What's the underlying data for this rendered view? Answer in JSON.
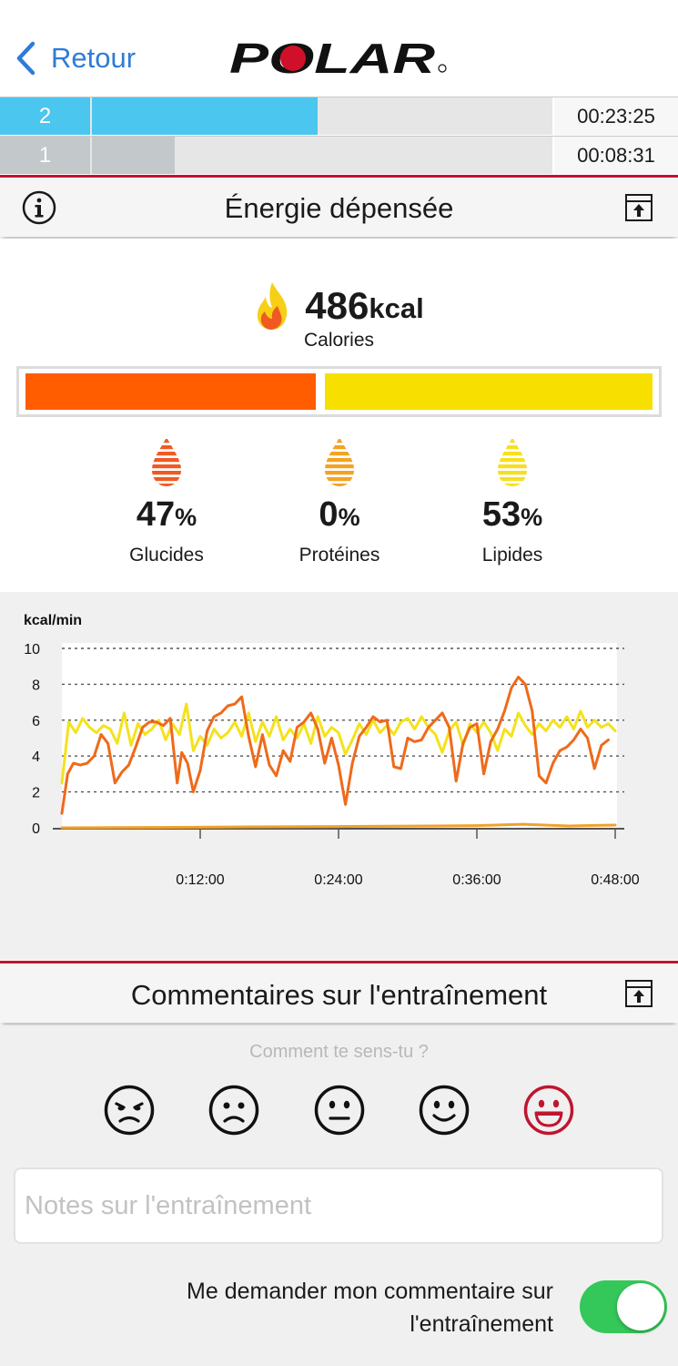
{
  "nav": {
    "back_label": "Retour",
    "logo_text": "POLAR"
  },
  "zones": [
    {
      "number": "2",
      "time": "00:23:25",
      "fraction": 0.49,
      "color": "#4ac6ef"
    },
    {
      "number": "1",
      "time": "00:08:31",
      "fraction": 0.18,
      "color": "#c3c8cb"
    }
  ],
  "energy": {
    "title": "Énergie dépensée",
    "calories_value": "486",
    "calories_unit": "kcal",
    "calories_label": "Calories",
    "ratio": {
      "carbs": 0.47,
      "fat": 0.53
    },
    "macros": [
      {
        "value": "47",
        "unit": "%",
        "label": "Glucides",
        "color": "#f05a22"
      },
      {
        "value": "0",
        "unit": "%",
        "label": "Protéines",
        "color": "#f3a323"
      },
      {
        "value": "53",
        "unit": "%",
        "label": "Lipides",
        "color": "#f8df1e"
      }
    ]
  },
  "chart_data": {
    "type": "line",
    "ylabel": "kcal/min",
    "ylim": [
      0,
      10
    ],
    "yticks": [
      "0",
      "2",
      "4",
      "6",
      "8",
      "10"
    ],
    "xlim": [
      0,
      48
    ],
    "xticks": [
      {
        "minute": 12,
        "label": "0:12:00"
      },
      {
        "minute": 24,
        "label": "0:24:00"
      },
      {
        "minute": 36,
        "label": "0:36:00"
      },
      {
        "minute": 48,
        "label": "0:48:00"
      }
    ],
    "grid": true,
    "series": [
      {
        "color": "#f4e21c",
        "points": [
          [
            0.0,
            2.5
          ],
          [
            0.6,
            5.9
          ],
          [
            1.2,
            5.3
          ],
          [
            1.8,
            6.1
          ],
          [
            2.4,
            5.6
          ],
          [
            3.0,
            5.3
          ],
          [
            3.6,
            5.7
          ],
          [
            4.2,
            5.5
          ],
          [
            4.8,
            4.7
          ],
          [
            5.4,
            6.4
          ],
          [
            6.0,
            4.6
          ],
          [
            6.6,
            5.8
          ],
          [
            7.2,
            5.2
          ],
          [
            7.8,
            5.5
          ],
          [
            8.4,
            6.0
          ],
          [
            9.0,
            4.9
          ],
          [
            9.6,
            5.8
          ],
          [
            10.2,
            5.2
          ],
          [
            10.8,
            6.9
          ],
          [
            11.4,
            4.3
          ],
          [
            12.0,
            5.1
          ],
          [
            12.6,
            4.6
          ],
          [
            13.2,
            5.5
          ],
          [
            13.8,
            5.0
          ],
          [
            14.4,
            5.3
          ],
          [
            15.0,
            5.9
          ],
          [
            15.6,
            5.1
          ],
          [
            16.2,
            6.4
          ],
          [
            16.8,
            4.8
          ],
          [
            17.4,
            5.9
          ],
          [
            18.0,
            5.1
          ],
          [
            18.6,
            6.2
          ],
          [
            19.2,
            4.9
          ],
          [
            19.8,
            5.5
          ],
          [
            20.4,
            5.0
          ],
          [
            21.0,
            5.8
          ],
          [
            21.6,
            4.7
          ],
          [
            22.2,
            6.2
          ],
          [
            22.8,
            5.1
          ],
          [
            23.4,
            5.6
          ],
          [
            24.0,
            5.3
          ],
          [
            24.6,
            4.1
          ],
          [
            25.2,
            4.9
          ],
          [
            25.8,
            5.8
          ],
          [
            26.4,
            5.2
          ],
          [
            27.0,
            6.0
          ],
          [
            27.6,
            5.3
          ],
          [
            28.2,
            5.7
          ],
          [
            28.8,
            5.2
          ],
          [
            29.4,
            5.9
          ],
          [
            30.0,
            6.1
          ],
          [
            30.6,
            5.5
          ],
          [
            31.2,
            6.2
          ],
          [
            31.8,
            5.6
          ],
          [
            32.4,
            5.2
          ],
          [
            33.0,
            4.2
          ],
          [
            33.6,
            5.4
          ],
          [
            34.2,
            5.9
          ],
          [
            34.8,
            4.6
          ],
          [
            35.4,
            5.8
          ],
          [
            36.0,
            5.3
          ],
          [
            36.6,
            5.9
          ],
          [
            37.2,
            5.3
          ],
          [
            37.8,
            4.3
          ],
          [
            38.4,
            5.5
          ],
          [
            39.0,
            5.1
          ],
          [
            39.6,
            6.4
          ],
          [
            40.2,
            5.7
          ],
          [
            40.8,
            5.2
          ],
          [
            41.4,
            5.8
          ],
          [
            42.0,
            5.4
          ],
          [
            42.6,
            6.0
          ],
          [
            43.2,
            5.6
          ],
          [
            43.8,
            6.2
          ],
          [
            44.4,
            5.5
          ],
          [
            45.0,
            6.5
          ],
          [
            45.6,
            5.6
          ],
          [
            46.2,
            6.0
          ],
          [
            46.8,
            5.6
          ],
          [
            47.4,
            5.8
          ],
          [
            48.0,
            5.4
          ]
        ]
      },
      {
        "color": "#ef6a1a",
        "points": [
          [
            0.0,
            0.8
          ],
          [
            0.5,
            3.0
          ],
          [
            1.0,
            3.6
          ],
          [
            1.6,
            3.5
          ],
          [
            2.2,
            3.6
          ],
          [
            2.8,
            4.0
          ],
          [
            3.4,
            5.2
          ],
          [
            4.0,
            4.7
          ],
          [
            4.6,
            2.5
          ],
          [
            5.2,
            3.1
          ],
          [
            5.8,
            3.5
          ],
          [
            6.4,
            4.5
          ],
          [
            7.0,
            5.6
          ],
          [
            7.6,
            5.9
          ],
          [
            8.2,
            5.9
          ],
          [
            8.8,
            5.7
          ],
          [
            9.4,
            6.1
          ],
          [
            10.0,
            2.5
          ],
          [
            10.4,
            4.2
          ],
          [
            10.9,
            3.6
          ],
          [
            11.4,
            2.0
          ],
          [
            12.0,
            3.2
          ],
          [
            12.6,
            5.4
          ],
          [
            13.2,
            6.2
          ],
          [
            13.8,
            6.4
          ],
          [
            14.4,
            6.8
          ],
          [
            15.0,
            6.9
          ],
          [
            15.6,
            7.3
          ],
          [
            16.2,
            5.1
          ],
          [
            16.8,
            3.4
          ],
          [
            17.4,
            5.2
          ],
          [
            18.0,
            3.5
          ],
          [
            18.6,
            2.9
          ],
          [
            19.2,
            4.3
          ],
          [
            19.8,
            3.7
          ],
          [
            20.4,
            5.6
          ],
          [
            21.0,
            5.9
          ],
          [
            21.6,
            6.4
          ],
          [
            22.2,
            5.5
          ],
          [
            22.8,
            3.6
          ],
          [
            23.4,
            5.0
          ],
          [
            24.0,
            3.5
          ],
          [
            24.6,
            1.3
          ],
          [
            25.2,
            3.6
          ],
          [
            25.8,
            5.1
          ],
          [
            26.4,
            5.6
          ],
          [
            27.0,
            6.2
          ],
          [
            27.6,
            5.9
          ],
          [
            28.2,
            6.0
          ],
          [
            28.8,
            3.4
          ],
          [
            29.4,
            3.3
          ],
          [
            30.0,
            5.0
          ],
          [
            30.6,
            4.8
          ],
          [
            31.2,
            4.9
          ],
          [
            31.8,
            5.6
          ],
          [
            32.4,
            6.0
          ],
          [
            33.0,
            6.4
          ],
          [
            33.6,
            5.6
          ],
          [
            34.2,
            2.6
          ],
          [
            34.8,
            4.7
          ],
          [
            35.4,
            5.6
          ],
          [
            36.0,
            5.8
          ],
          [
            36.6,
            3.0
          ],
          [
            37.2,
            4.8
          ],
          [
            37.8,
            5.5
          ],
          [
            38.4,
            6.5
          ],
          [
            39.0,
            7.8
          ],
          [
            39.6,
            8.4
          ],
          [
            40.2,
            8.0
          ],
          [
            40.8,
            6.5
          ],
          [
            41.4,
            2.9
          ],
          [
            42.0,
            2.5
          ],
          [
            42.6,
            3.6
          ],
          [
            43.2,
            4.3
          ],
          [
            43.8,
            4.5
          ],
          [
            44.4,
            4.9
          ],
          [
            45.0,
            5.5
          ],
          [
            45.6,
            5.0
          ],
          [
            46.2,
            3.3
          ],
          [
            46.8,
            4.6
          ],
          [
            47.4,
            4.9
          ]
        ]
      },
      {
        "color": "#f0a12b",
        "points": [
          [
            0.0,
            0.0
          ],
          [
            8.0,
            0.02
          ],
          [
            16.0,
            0.05
          ],
          [
            24.0,
            0.07
          ],
          [
            32.0,
            0.1
          ],
          [
            36.0,
            0.12
          ],
          [
            40.0,
            0.2
          ],
          [
            44.0,
            0.1
          ],
          [
            48.0,
            0.15
          ]
        ]
      }
    ]
  },
  "feedback": {
    "title": "Commentaires sur l'entraînement",
    "question": "Comment te sens-tu ?",
    "moods": [
      "very-bad",
      "bad",
      "neutral",
      "good",
      "very-good"
    ],
    "selected_mood": "very-good",
    "accent": "#c0152f",
    "notes_placeholder": "Notes sur l'entraînement",
    "ask_label": "Me demander mon commentaire sur l'entraînement",
    "toggle_on": true
  }
}
